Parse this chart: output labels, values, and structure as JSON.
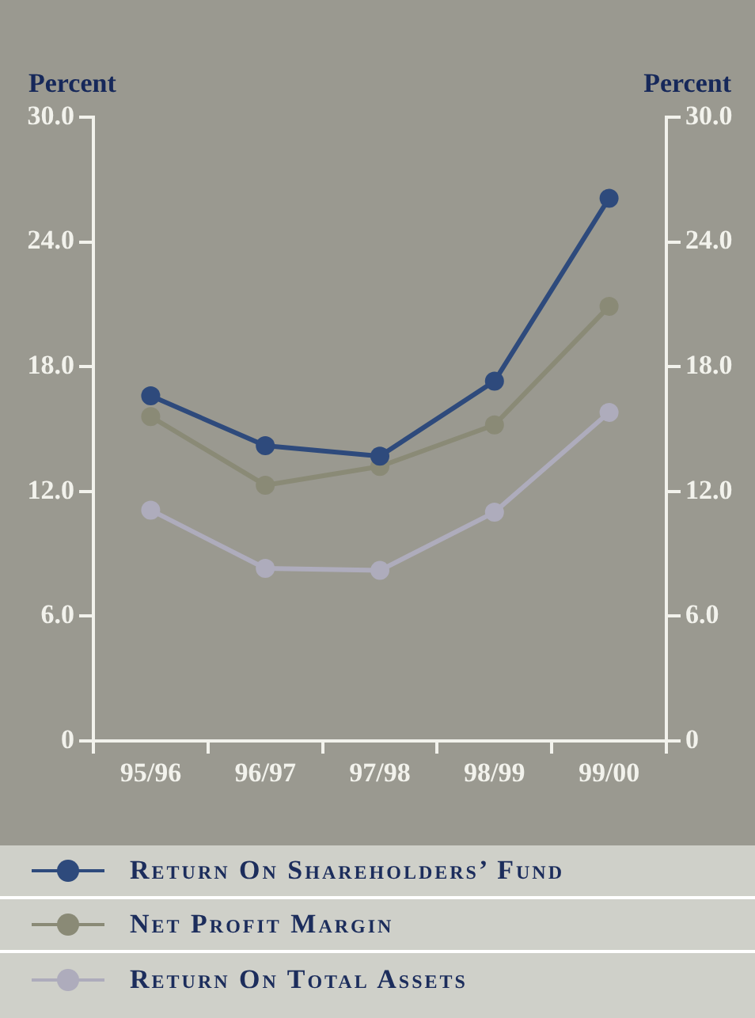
{
  "chart_data": {
    "type": "line",
    "ylabel": "Percent",
    "y2label": "Percent",
    "categories": [
      "95/96",
      "96/97",
      "97/98",
      "98/99",
      "99/00"
    ],
    "series": [
      {
        "name": "Return On Shareholders’ Fund",
        "color": "#2e4a7c",
        "values": [
          16.6,
          14.2,
          13.7,
          17.3,
          26.1
        ]
      },
      {
        "name": "Net Profit Margin",
        "color": "#8a8a76",
        "values": [
          15.6,
          12.3,
          13.2,
          15.2,
          20.9
        ]
      },
      {
        "name": "Return On Total Assets",
        "color": "#aeacbc",
        "values": [
          11.1,
          8.3,
          8.2,
          11.0,
          15.8
        ]
      }
    ],
    "ylim": [
      0,
      30
    ],
    "yticks": [
      0,
      {
        "value": 6,
        "label": "6.0"
      },
      {
        "value": 12,
        "label": "12.0"
      },
      {
        "value": 18,
        "label": "18.0"
      },
      {
        "value": 24,
        "label": "24.0"
      },
      {
        "value": 30,
        "label": "30.0"
      }
    ],
    "y2lim": [
      0,
      30
    ],
    "y2ticks": [
      0,
      {
        "value": 6,
        "label": "6.0"
      },
      {
        "value": 12,
        "label": "12.0"
      },
      {
        "value": 18,
        "label": "18.0"
      },
      {
        "value": 24,
        "label": "24.0"
      },
      {
        "value": 30,
        "label": "30.0"
      }
    ],
    "grid": false,
    "legend": "bottom",
    "marker": "circle",
    "line_style": "solid"
  }
}
